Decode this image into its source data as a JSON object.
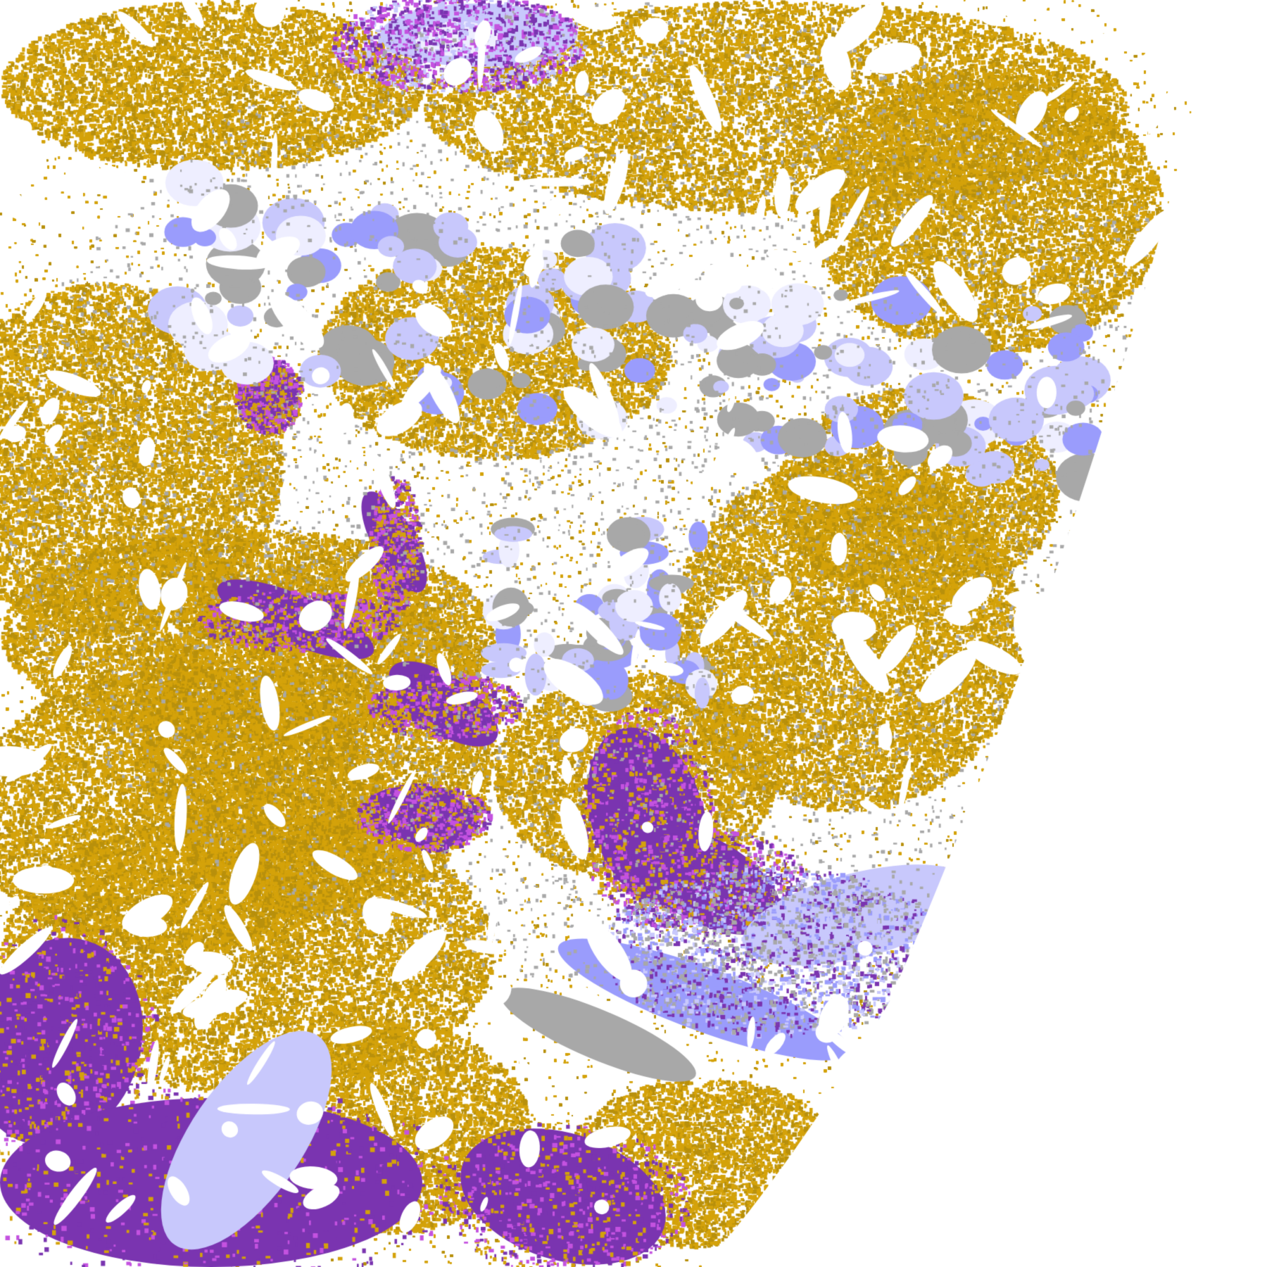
{
  "image": {
    "kind": "satellite cloud classification",
    "palette": {
      "background": "#ffffff",
      "gold": "#d4a20a",
      "dark_gold": "#b8900c",
      "purple": "#7a34b0",
      "magenta": "#c452e0",
      "lavender": "#c8c8fc",
      "periwinkle": "#9a9cfc",
      "pale": "#eeeeff",
      "gray": "#a8a8a8",
      "space": "#ffffff"
    }
  }
}
